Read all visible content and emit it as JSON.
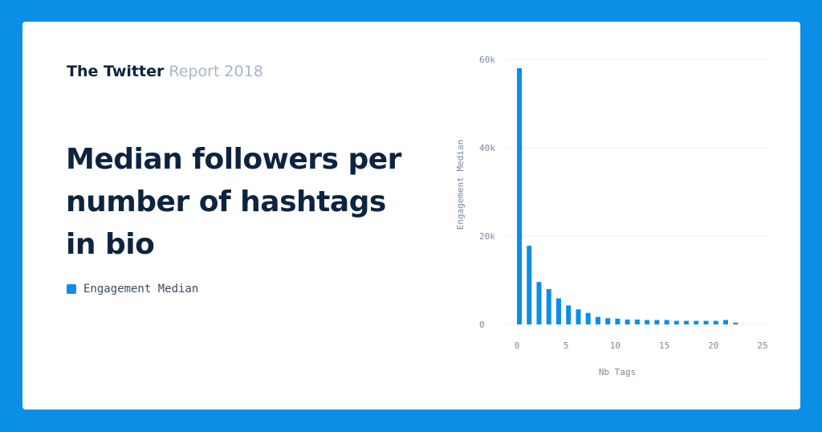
{
  "header": {
    "brand_bold": "The Twitter",
    "brand_light": "Report 2018"
  },
  "headline": "Median followers per number of hashtags in bio",
  "legend": {
    "label": "Engagement Median",
    "color": "#0b8fe6"
  },
  "chart_data": {
    "type": "bar",
    "title": "",
    "xlabel": "Nb Tags",
    "ylabel": "Engagement Median",
    "x": [
      0,
      1,
      2,
      3,
      4,
      5,
      6,
      7,
      8,
      9,
      10,
      11,
      12,
      13,
      14,
      15,
      16,
      17,
      18,
      19,
      20,
      21,
      22
    ],
    "series": [
      {
        "name": "Engagement Median",
        "color": "#0b8fe6",
        "values": [
          58000,
          17800,
          9600,
          8000,
          5900,
          4300,
          3400,
          2600,
          1700,
          1400,
          1300,
          1100,
          1100,
          1000,
          1000,
          1000,
          800,
          800,
          800,
          800,
          800,
          1000,
          400
        ]
      }
    ],
    "xlim": [
      0,
      25
    ],
    "ylim": [
      0,
      60000
    ],
    "xticks": [
      0,
      5,
      10,
      15,
      20,
      25
    ],
    "xtick_labels": [
      "0",
      "5",
      "10",
      "15",
      "20",
      "25"
    ],
    "yticks": [
      0,
      20000,
      40000,
      60000
    ],
    "ytick_labels": [
      "0",
      "20k",
      "40k",
      "60k"
    ],
    "grid": true,
    "legend_position": "left panel"
  }
}
